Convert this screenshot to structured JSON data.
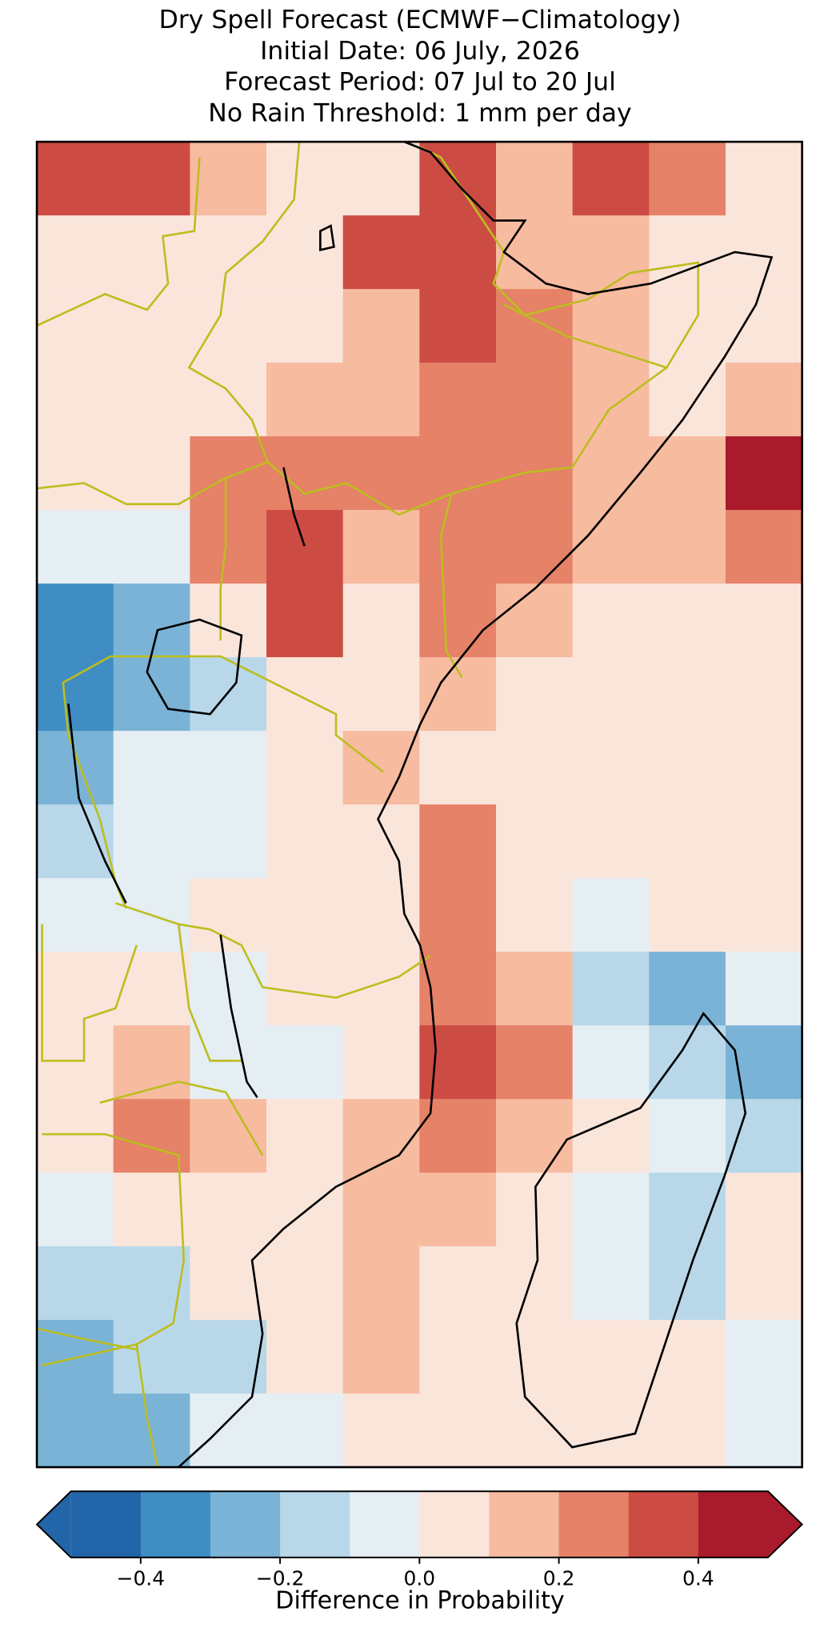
{
  "chart_data": {
    "type": "gridmap",
    "title_lines": [
      "Dry Spell Forecast (ECMWF−Climatology)",
      "Initial Date: 06 July, 2026",
      "Forecast Period: 07 Jul to 20 Jul",
      "No Rain Threshold: 1 mm per day"
    ],
    "values": [
      [
        0.3,
        0.35,
        0.1,
        0.05,
        0.05,
        0.3,
        0.15,
        0.3,
        0.2,
        0.05
      ],
      [
        0.05,
        0.05,
        0.05,
        0.05,
        0.3,
        0.3,
        0.15,
        0.1,
        0.05,
        0.05
      ],
      [
        0.05,
        0.05,
        0.05,
        0.05,
        0.1,
        0.35,
        0.2,
        0.1,
        0.05,
        0.05
      ],
      [
        0.0,
        0.0,
        0.05,
        0.1,
        0.1,
        0.2,
        0.25,
        0.15,
        0.05,
        0.15
      ],
      [
        0.0,
        0.05,
        0.25,
        0.25,
        0.25,
        0.2,
        0.2,
        0.1,
        0.1,
        0.4
      ],
      [
        -0.05,
        -0.05,
        0.25,
        0.35,
        0.1,
        0.2,
        0.25,
        0.1,
        0.15,
        0.2
      ],
      [
        -0.35,
        -0.25,
        0.0,
        0.3,
        0.05,
        0.2,
        0.1,
        0.05,
        0.05,
        0.05
      ],
      [
        -0.4,
        -0.3,
        -0.2,
        0.0,
        0.05,
        0.1,
        0.05,
        0.05,
        0.05,
        0.05
      ],
      [
        -0.25,
        -0.1,
        -0.1,
        0.05,
        0.1,
        0.05,
        0.05,
        0.05,
        0.05,
        0.0
      ],
      [
        -0.2,
        -0.05,
        -0.05,
        0.05,
        0.05,
        0.2,
        0.05,
        0.05,
        0.0,
        0.05
      ],
      [
        -0.1,
        -0.05,
        0.0,
        0.05,
        0.05,
        0.2,
        0.05,
        -0.05,
        0.05,
        0.05
      ],
      [
        0.05,
        0.05,
        -0.05,
        0.0,
        0.0,
        0.25,
        0.1,
        -0.2,
        -0.3,
        -0.05
      ],
      [
        0.05,
        0.1,
        -0.1,
        -0.05,
        0.0,
        0.35,
        0.2,
        -0.05,
        -0.15,
        -0.3
      ],
      [
        0.0,
        0.2,
        0.15,
        0.0,
        0.1,
        0.25,
        0.15,
        0.05,
        -0.1,
        -0.15
      ],
      [
        -0.05,
        0.0,
        0.05,
        0.0,
        0.15,
        0.15,
        0.05,
        -0.05,
        -0.2,
        0.0
      ],
      [
        -0.15,
        -0.15,
        0.0,
        0.05,
        0.1,
        0.05,
        0.0,
        -0.1,
        -0.15,
        0.0
      ],
      [
        -0.3,
        -0.2,
        -0.15,
        0.05,
        0.1,
        0.05,
        0.0,
        0.0,
        0.0,
        -0.1
      ],
      [
        -0.3,
        -0.25,
        -0.1,
        -0.05,
        0.05,
        0.05,
        0.0,
        0.05,
        0.0,
        -0.1
      ]
    ],
    "levels": [
      -0.5,
      -0.4,
      -0.3,
      -0.2,
      -0.1,
      0,
      0.1,
      0.2,
      0.3,
      0.4,
      0.5
    ],
    "colors": [
      "#2265a8",
      "#3f8dc3",
      "#7ab3d6",
      "#b8d8ea",
      "#e5eef3",
      "#fae5db",
      "#f7bba0",
      "#e58267",
      "#cc4c43",
      "#a91b2c"
    ],
    "extend": "both",
    "colorbar": {
      "label": "Difference in Probability",
      "ticks": [
        {
          "value": -0.4,
          "label": "−0.4"
        },
        {
          "value": -0.2,
          "label": "−0.2"
        },
        {
          "value": 0,
          "label": "0.0"
        },
        0.2,
        0.4
      ]
    }
  }
}
